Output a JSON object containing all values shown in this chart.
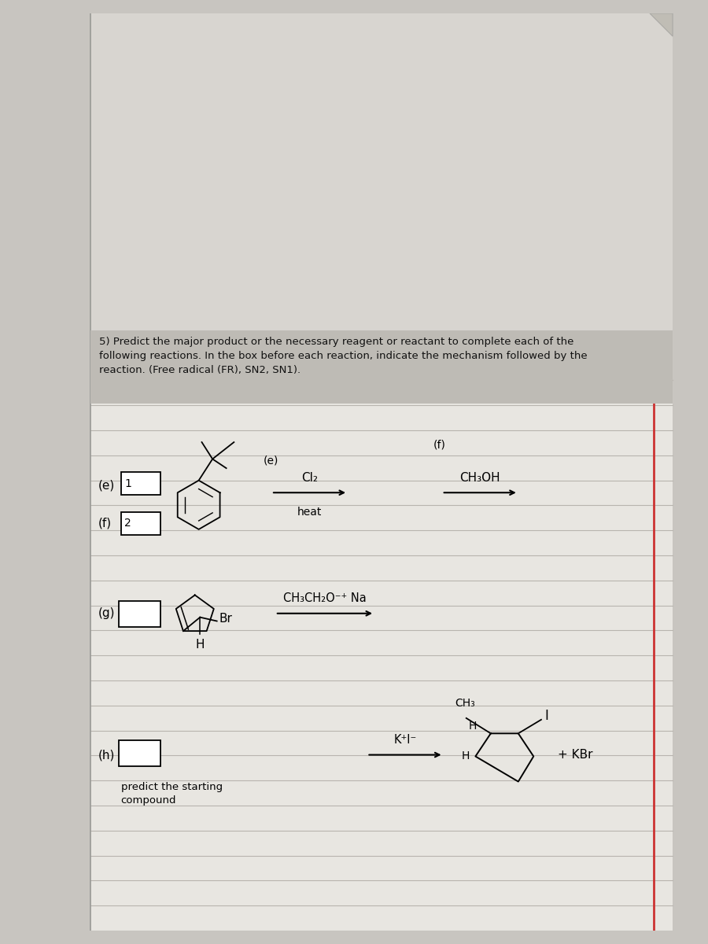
{
  "bg_gray": "#c8c5c0",
  "paper_color": "#e8e6e1",
  "line_color": "#b8b4ae",
  "red_margin": "#cc3333",
  "text_color": "#111111",
  "white": "#ffffff",
  "dark_gray_instr": "#c0bdb8",
  "instruction_text": "5) Predict the major product or the necessary reagent or reactant to complete each of the\nfollowing reactions. In the box before each reaction, indicate the mechanism followed by the\nreaction. (Free radical (FR), SN2, SN1).",
  "problem_e_label": "(e)",
  "problem_f_label": "(f)",
  "problem_g_label": "(g)",
  "problem_h_label": "(h)",
  "box1_label": "1",
  "box2_label": "2",
  "reagent_e_line1": "Cl₂",
  "reagent_e_line2": "heat",
  "reagent_f": "CH₃OH",
  "reagent_g_text": "CH₃CH₂O⁻⁺ Na",
  "reagent_h_left": "K⁺I⁻",
  "product_h_right": "+ KBr",
  "label_h_ch3": "CH₃",
  "label_h_H_top": "H",
  "label_h_H_left": "H",
  "label_h_I": "I",
  "label_g_Br": "Br",
  "label_g_H": "H",
  "predict_text": "predict the starting\ncompound"
}
